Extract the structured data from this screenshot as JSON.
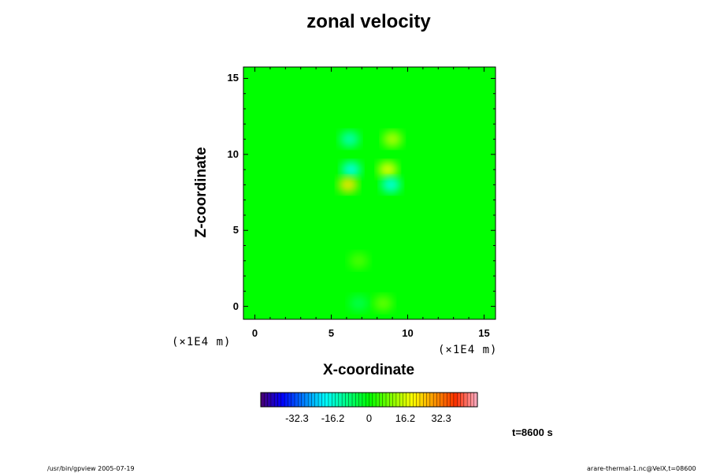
{
  "chart_data": {
    "type": "heatmap",
    "title": "zonal velocity",
    "xlabel": "X-coordinate",
    "ylabel": "Z-coordinate",
    "xlim": [
      -0.75,
      15.75
    ],
    "ylim": [
      -0.85,
      15.75
    ],
    "xticks": [
      "0",
      "5",
      "10",
      "15"
    ],
    "yticks": [
      "0",
      "5",
      "10",
      "15"
    ],
    "x_unit_left": "(×1E4 m)",
    "x_unit_right": "(×1E4 m)",
    "colorbar": {
      "min": -48.5,
      "max": 48.5,
      "ticks": [
        "-32.3",
        "-16.2",
        "0",
        "16.2",
        "32.3"
      ],
      "tick_values": [
        -32.3,
        -16.2,
        0,
        16.2,
        32.3
      ]
    },
    "features": [
      {
        "x": 6.2,
        "z": 11.0,
        "value": -14
      },
      {
        "x": 9.0,
        "z": 11.0,
        "value": 14
      },
      {
        "x": 6.3,
        "z": 9.0,
        "value": -18
      },
      {
        "x": 8.7,
        "z": 9.0,
        "value": 18
      },
      {
        "x": 6.1,
        "z": 8.0,
        "value": 22
      },
      {
        "x": 8.9,
        "z": 8.0,
        "value": -18
      },
      {
        "x": 6.8,
        "z": 3.0,
        "value": 6
      },
      {
        "x": 6.8,
        "z": 0.2,
        "value": -6
      },
      {
        "x": 8.4,
        "z": 0.2,
        "value": 8
      }
    ]
  },
  "time_label": "t=8600 s",
  "footer_left": "/usr/bin/gpview 2005-07-19",
  "footer_right": "arare-thermal-1.nc@VelX,t=08600"
}
